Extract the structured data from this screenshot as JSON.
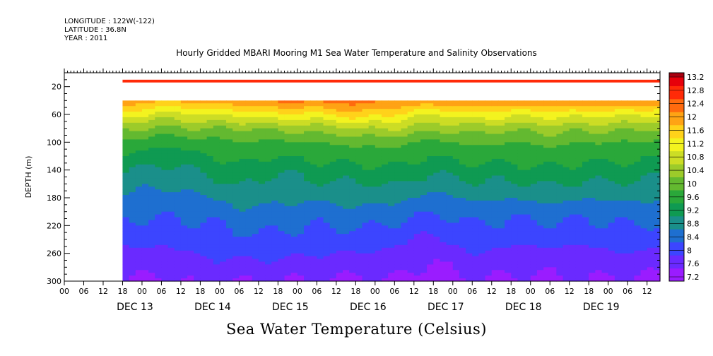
{
  "header": {
    "longitude": "LONGITUDE : 122W(-122)",
    "latitude": "LATITUDE : 36.8N",
    "year": "YEAR : 2011"
  },
  "chart_data": {
    "type": "heatmap",
    "title": "Hourly Gridded MBARI Mooring M1 Sea Water Temperature and Salinity Observations",
    "xlabel": "Sea Water Temperature (Celsius)",
    "ylabel": "DEPTH (m)",
    "y_range_m": [
      0,
      300
    ],
    "y_reversed": true,
    "y_ticks": [
      20,
      60,
      100,
      140,
      180,
      220,
      260,
      300
    ],
    "x_range": [
      "2011-12-12T00:00",
      "2011-12-19T16:00"
    ],
    "x_hour_ticks": [
      "00",
      "06",
      "12",
      "18",
      "00",
      "06",
      "12",
      "18",
      "00",
      "06",
      "12",
      "18",
      "00",
      "06",
      "12",
      "18",
      "00",
      "06",
      "12",
      "18",
      "00",
      "06",
      "12",
      "18",
      "00",
      "06",
      "12",
      "18",
      "00",
      "06",
      "12"
    ],
    "x_day_labels": [
      "DEC 13",
      "DEC 14",
      "DEC 15",
      "DEC 16",
      "DEC 17",
      "DEC 18",
      "DEC 19"
    ],
    "data_start": "2011-12-12T18:00",
    "colorbar": {
      "levels": [
        7.2,
        7.6,
        8,
        8.4,
        8.8,
        9.2,
        9.6,
        10,
        10.4,
        10.8,
        11.2,
        11.6,
        12,
        12.4,
        12.8,
        13.2
      ],
      "labels": [
        "13.2",
        "12.8",
        "12.4",
        "12",
        "11.6",
        "11.2",
        "10.8",
        "10.4",
        "10",
        "9.6",
        "9.2",
        "8.8",
        "8.4",
        "8",
        "7.6",
        "7.2"
      ],
      "colors": [
        "#c800ff",
        "#9a1cff",
        "#6a2aff",
        "#3c45ff",
        "#1e6fd0",
        "#1a8f8a",
        "#0f9a52",
        "#2aa83a",
        "#63b930",
        "#9ccb2a",
        "#ccdd25",
        "#f3f31f",
        "#ffd21a",
        "#ffa314",
        "#ff6a0e",
        "#ff2a08",
        "#e6000b",
        "#a80010"
      ]
    },
    "surface_layer": {
      "depth_m": [
        10,
        14
      ],
      "temperature": 13.0
    },
    "missing_layer": {
      "depth_m": [
        14,
        40
      ]
    },
    "profiles": {
      "depth_m": [
        40,
        60,
        80,
        100,
        150,
        200,
        250,
        300
      ],
      "series": [
        {
          "name": "DEC 12 18:00",
          "values": [
            12.4,
            11.5,
            10.5,
            9.9,
            9.1,
            8.5,
            8.0,
            7.6
          ]
        },
        {
          "name": "DEC 13 06:00",
          "values": [
            12.0,
            11.0,
            10.3,
            9.7,
            8.9,
            8.5,
            8.0,
            7.5
          ]
        },
        {
          "name": "DEC 13 18:00",
          "values": [
            12.2,
            11.2,
            10.4,
            9.8,
            9.1,
            8.5,
            8.1,
            7.7
          ]
        },
        {
          "name": "DEC 14 06:00",
          "values": [
            12.3,
            11.3,
            10.4,
            10.0,
            9.4,
            8.7,
            8.2,
            7.6
          ]
        },
        {
          "name": "DEC 14 18:00",
          "values": [
            12.5,
            11.5,
            10.5,
            9.9,
            9.1,
            8.7,
            8.2,
            7.6
          ]
        },
        {
          "name": "DEC 15 06:00",
          "values": [
            12.5,
            11.5,
            10.6,
            10.0,
            9.3,
            8.6,
            8.1,
            7.6
          ]
        },
        {
          "name": "DEC 15 18:00",
          "values": [
            12.6,
            11.9,
            10.8,
            10.1,
            9.3,
            8.7,
            8.1,
            7.5
          ]
        },
        {
          "name": "DEC 16 06:00",
          "values": [
            12.4,
            11.6,
            10.8,
            10.1,
            9.4,
            8.6,
            8.0,
            7.6
          ]
        },
        {
          "name": "DEC 16 18:00",
          "values": [
            12.3,
            11.2,
            10.5,
            9.9,
            9.1,
            8.4,
            7.8,
            7.3
          ]
        },
        {
          "name": "DEC 17 06:00",
          "values": [
            12.4,
            11.5,
            10.6,
            10.1,
            9.3,
            8.6,
            8.1,
            7.6
          ]
        },
        {
          "name": "DEC 17 18:00",
          "values": [
            12.4,
            11.3,
            10.5,
            10.0,
            9.3,
            8.5,
            8.0,
            7.5
          ]
        },
        {
          "name": "DEC 18 06:00",
          "values": [
            12.4,
            11.4,
            10.6,
            10.1,
            9.4,
            8.6,
            8.0,
            7.5
          ]
        },
        {
          "name": "DEC 18 18:00",
          "values": [
            12.5,
            11.3,
            10.5,
            10.0,
            9.3,
            8.5,
            8.0,
            7.6
          ]
        },
        {
          "name": "DEC 19 06:00",
          "values": [
            12.4,
            11.3,
            10.5,
            10.0,
            9.3,
            8.6,
            8.1,
            7.5
          ]
        },
        {
          "name": "DEC 19 16:00",
          "values": [
            12.3,
            11.2,
            10.4,
            9.9,
            9.2,
            8.6,
            8.0,
            7.5
          ]
        }
      ]
    }
  }
}
